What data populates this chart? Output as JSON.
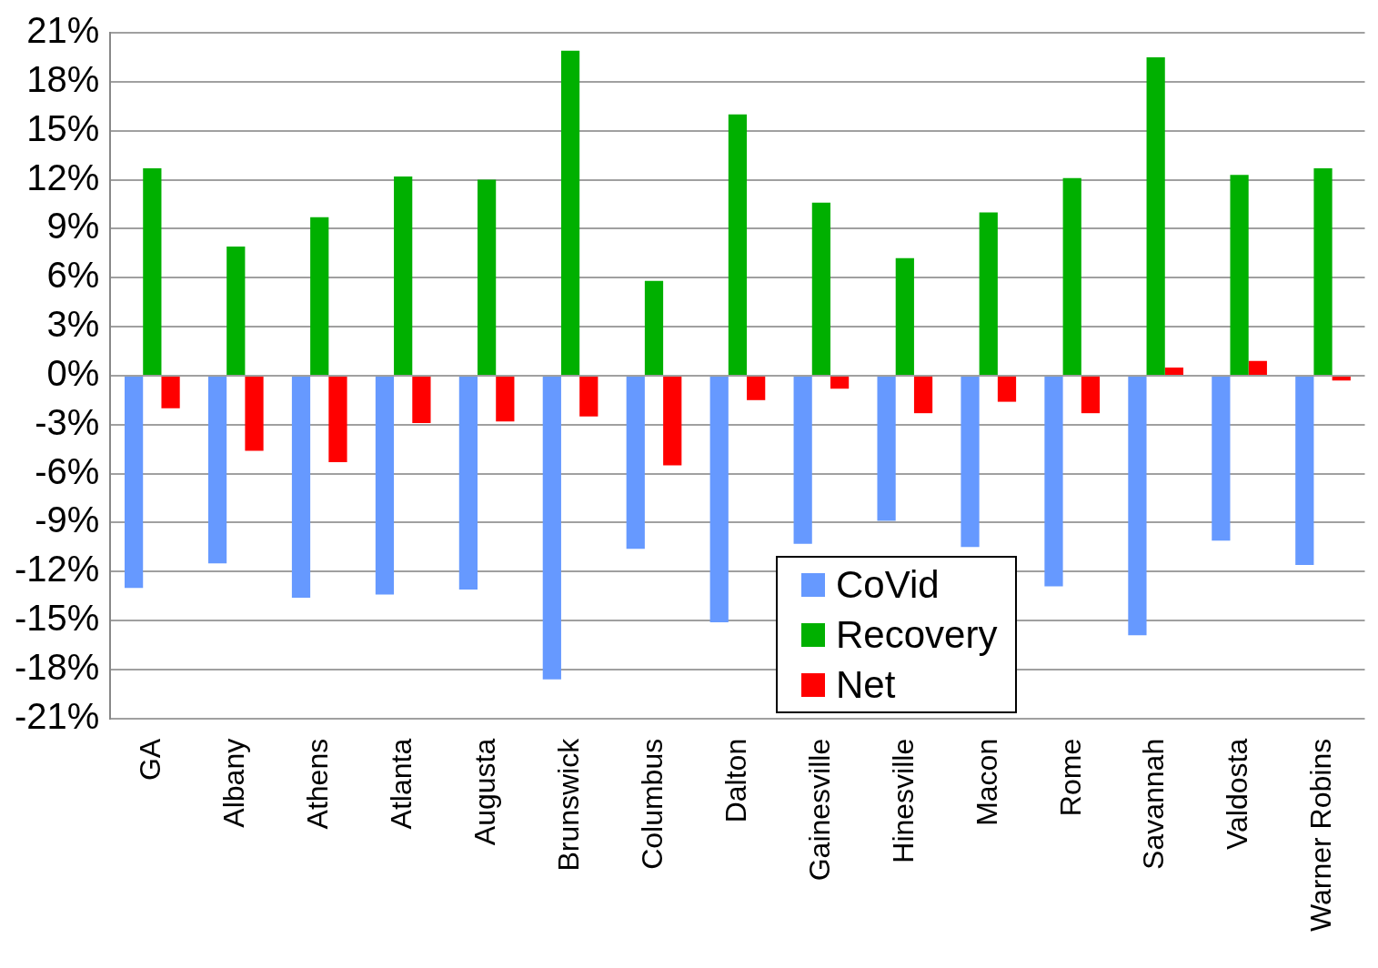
{
  "chart_data": {
    "type": "bar",
    "categories": [
      "GA",
      "Albany",
      "Athens",
      "Atlanta",
      "Augusta",
      "Brunswick",
      "Columbus",
      "Dalton",
      "Gainesville",
      "Hinesville",
      "Macon",
      "Rome",
      "Savannah",
      "Valdosta",
      "Warner Robins"
    ],
    "series": [
      {
        "name": "CoVid",
        "color": "#6699ff",
        "values": [
          -13.0,
          -11.5,
          -13.6,
          -13.4,
          -13.1,
          -18.6,
          -10.6,
          -15.1,
          -10.3,
          -8.9,
          -10.5,
          -12.9,
          -15.9,
          -10.1,
          -11.6
        ]
      },
      {
        "name": "Recovery",
        "color": "#00b000",
        "values": [
          12.7,
          7.9,
          9.7,
          12.2,
          12.0,
          19.9,
          5.8,
          16.0,
          10.6,
          7.2,
          10.0,
          12.1,
          19.5,
          12.3,
          12.7
        ]
      },
      {
        "name": "Net",
        "color": "#ff0000",
        "values": [
          -2.0,
          -4.6,
          -5.3,
          -2.9,
          -2.8,
          -2.5,
          -5.5,
          -1.5,
          -0.8,
          -2.3,
          -1.6,
          -2.3,
          0.5,
          0.9,
          -0.3
        ]
      }
    ],
    "ylim": [
      -21,
      21
    ],
    "yticks": [
      {
        "value": -21,
        "label": "-21%"
      },
      {
        "value": -18,
        "label": "-18%"
      },
      {
        "value": -15,
        "label": "-15%"
      },
      {
        "value": -12,
        "label": "-12%"
      },
      {
        "value": -9,
        "label": "-9%"
      },
      {
        "value": -6,
        "label": "-6%"
      },
      {
        "value": -3,
        "label": "-3%"
      },
      {
        "value": 0,
        "label": "0%"
      },
      {
        "value": 3,
        "label": "3%"
      },
      {
        "value": 6,
        "label": "6%"
      },
      {
        "value": 9,
        "label": "9%"
      },
      {
        "value": 12,
        "label": "12%"
      },
      {
        "value": 15,
        "label": "15%"
      },
      {
        "value": 18,
        "label": "18%"
      },
      {
        "value": 21,
        "label": "21%"
      }
    ],
    "grid": "y",
    "legend": "bottom"
  }
}
